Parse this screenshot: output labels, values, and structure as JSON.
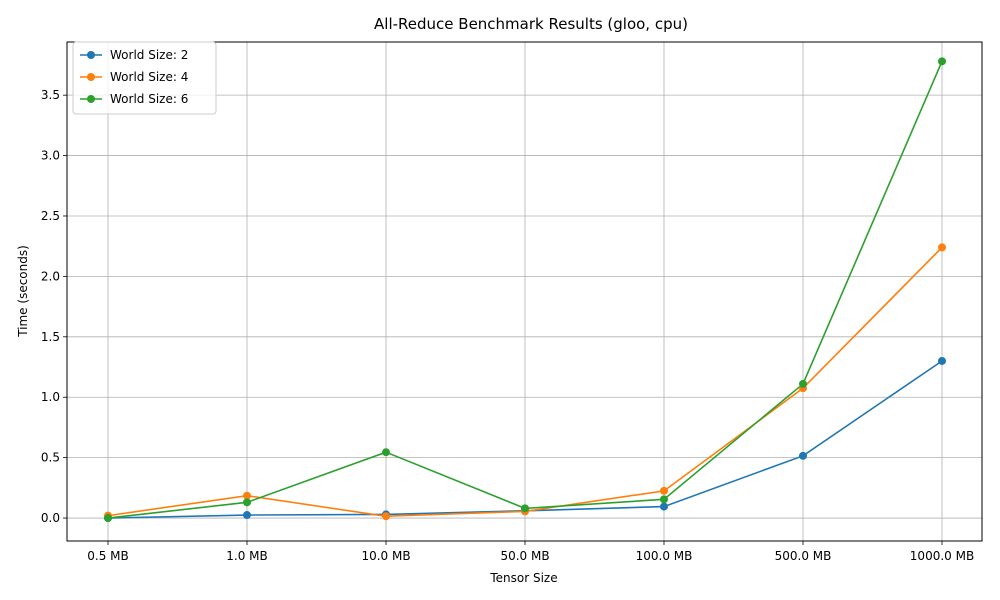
{
  "chart_data": {
    "type": "line",
    "title": "All-Reduce Benchmark Results (gloo, cpu)",
    "xlabel": "Tensor Size",
    "ylabel": "Time (seconds)",
    "categories": [
      "0.5 MB",
      "1.0 MB",
      "10.0 MB",
      "50.0 MB",
      "100.0 MB",
      "500.0 MB",
      "1000.0 MB"
    ],
    "ylim": [
      -0.19,
      3.94
    ],
    "yticks": [
      0.0,
      0.5,
      1.0,
      1.5,
      2.0,
      2.5,
      3.0,
      3.5
    ],
    "ytick_labels": [
      "0.0",
      "0.5",
      "1.0",
      "1.5",
      "2.0",
      "2.5",
      "3.0",
      "3.5"
    ],
    "grid": true,
    "legend_position": "top-left",
    "series": [
      {
        "name": "World Size: 2",
        "color": "#1f77b4",
        "values": [
          0.0,
          0.025,
          0.03,
          0.06,
          0.095,
          0.515,
          1.3
        ]
      },
      {
        "name": "World Size: 4",
        "color": "#ff7f0e",
        "values": [
          0.02,
          0.185,
          0.015,
          0.055,
          0.225,
          1.075,
          2.24
        ]
      },
      {
        "name": "World Size: 6",
        "color": "#2ca02c",
        "values": [
          0.0,
          0.13,
          0.545,
          0.08,
          0.155,
          1.11,
          3.78
        ]
      }
    ]
  }
}
